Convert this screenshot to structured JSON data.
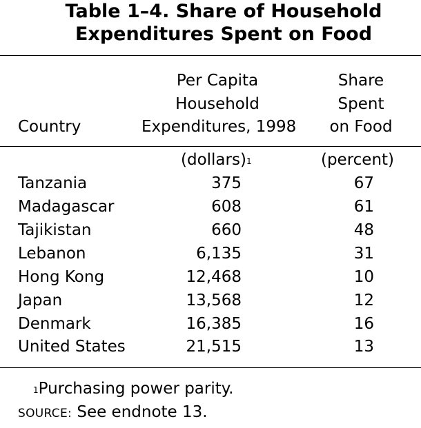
{
  "title": {
    "line1": "Table 1–4.  Share of Household",
    "line2": "Expenditures Spent on Food"
  },
  "columns": {
    "country": "Country",
    "expenditures": [
      "Per Capita",
      "Household",
      "Expenditures, 1998"
    ],
    "share": [
      "Share",
      "Spent",
      "on Food"
    ]
  },
  "units": {
    "expenditures": "(dollars)",
    "expenditures_note_marker": "1",
    "share": "(percent)"
  },
  "rows": [
    {
      "country": "Tanzania",
      "expenditures": "375",
      "share": "67"
    },
    {
      "country": "Madagascar",
      "expenditures": "608",
      "share": "61"
    },
    {
      "country": "Tajikistan",
      "expenditures": "660",
      "share": "48"
    },
    {
      "country": "Lebanon",
      "expenditures": "6,135",
      "share": "31"
    },
    {
      "country": "Hong Kong",
      "expenditures": "12,468",
      "share": "10"
    },
    {
      "country": "Japan",
      "expenditures": "13,568",
      "share": "12"
    },
    {
      "country": "Denmark",
      "expenditures": "16,385",
      "share": "16"
    },
    {
      "country": "United States",
      "expenditures": "21,515",
      "share": "13"
    }
  ],
  "footnote": {
    "marker": "1",
    "text": "Purchasing power parity."
  },
  "source": {
    "label": "SOURCE:",
    "text": " See endnote 13."
  }
}
